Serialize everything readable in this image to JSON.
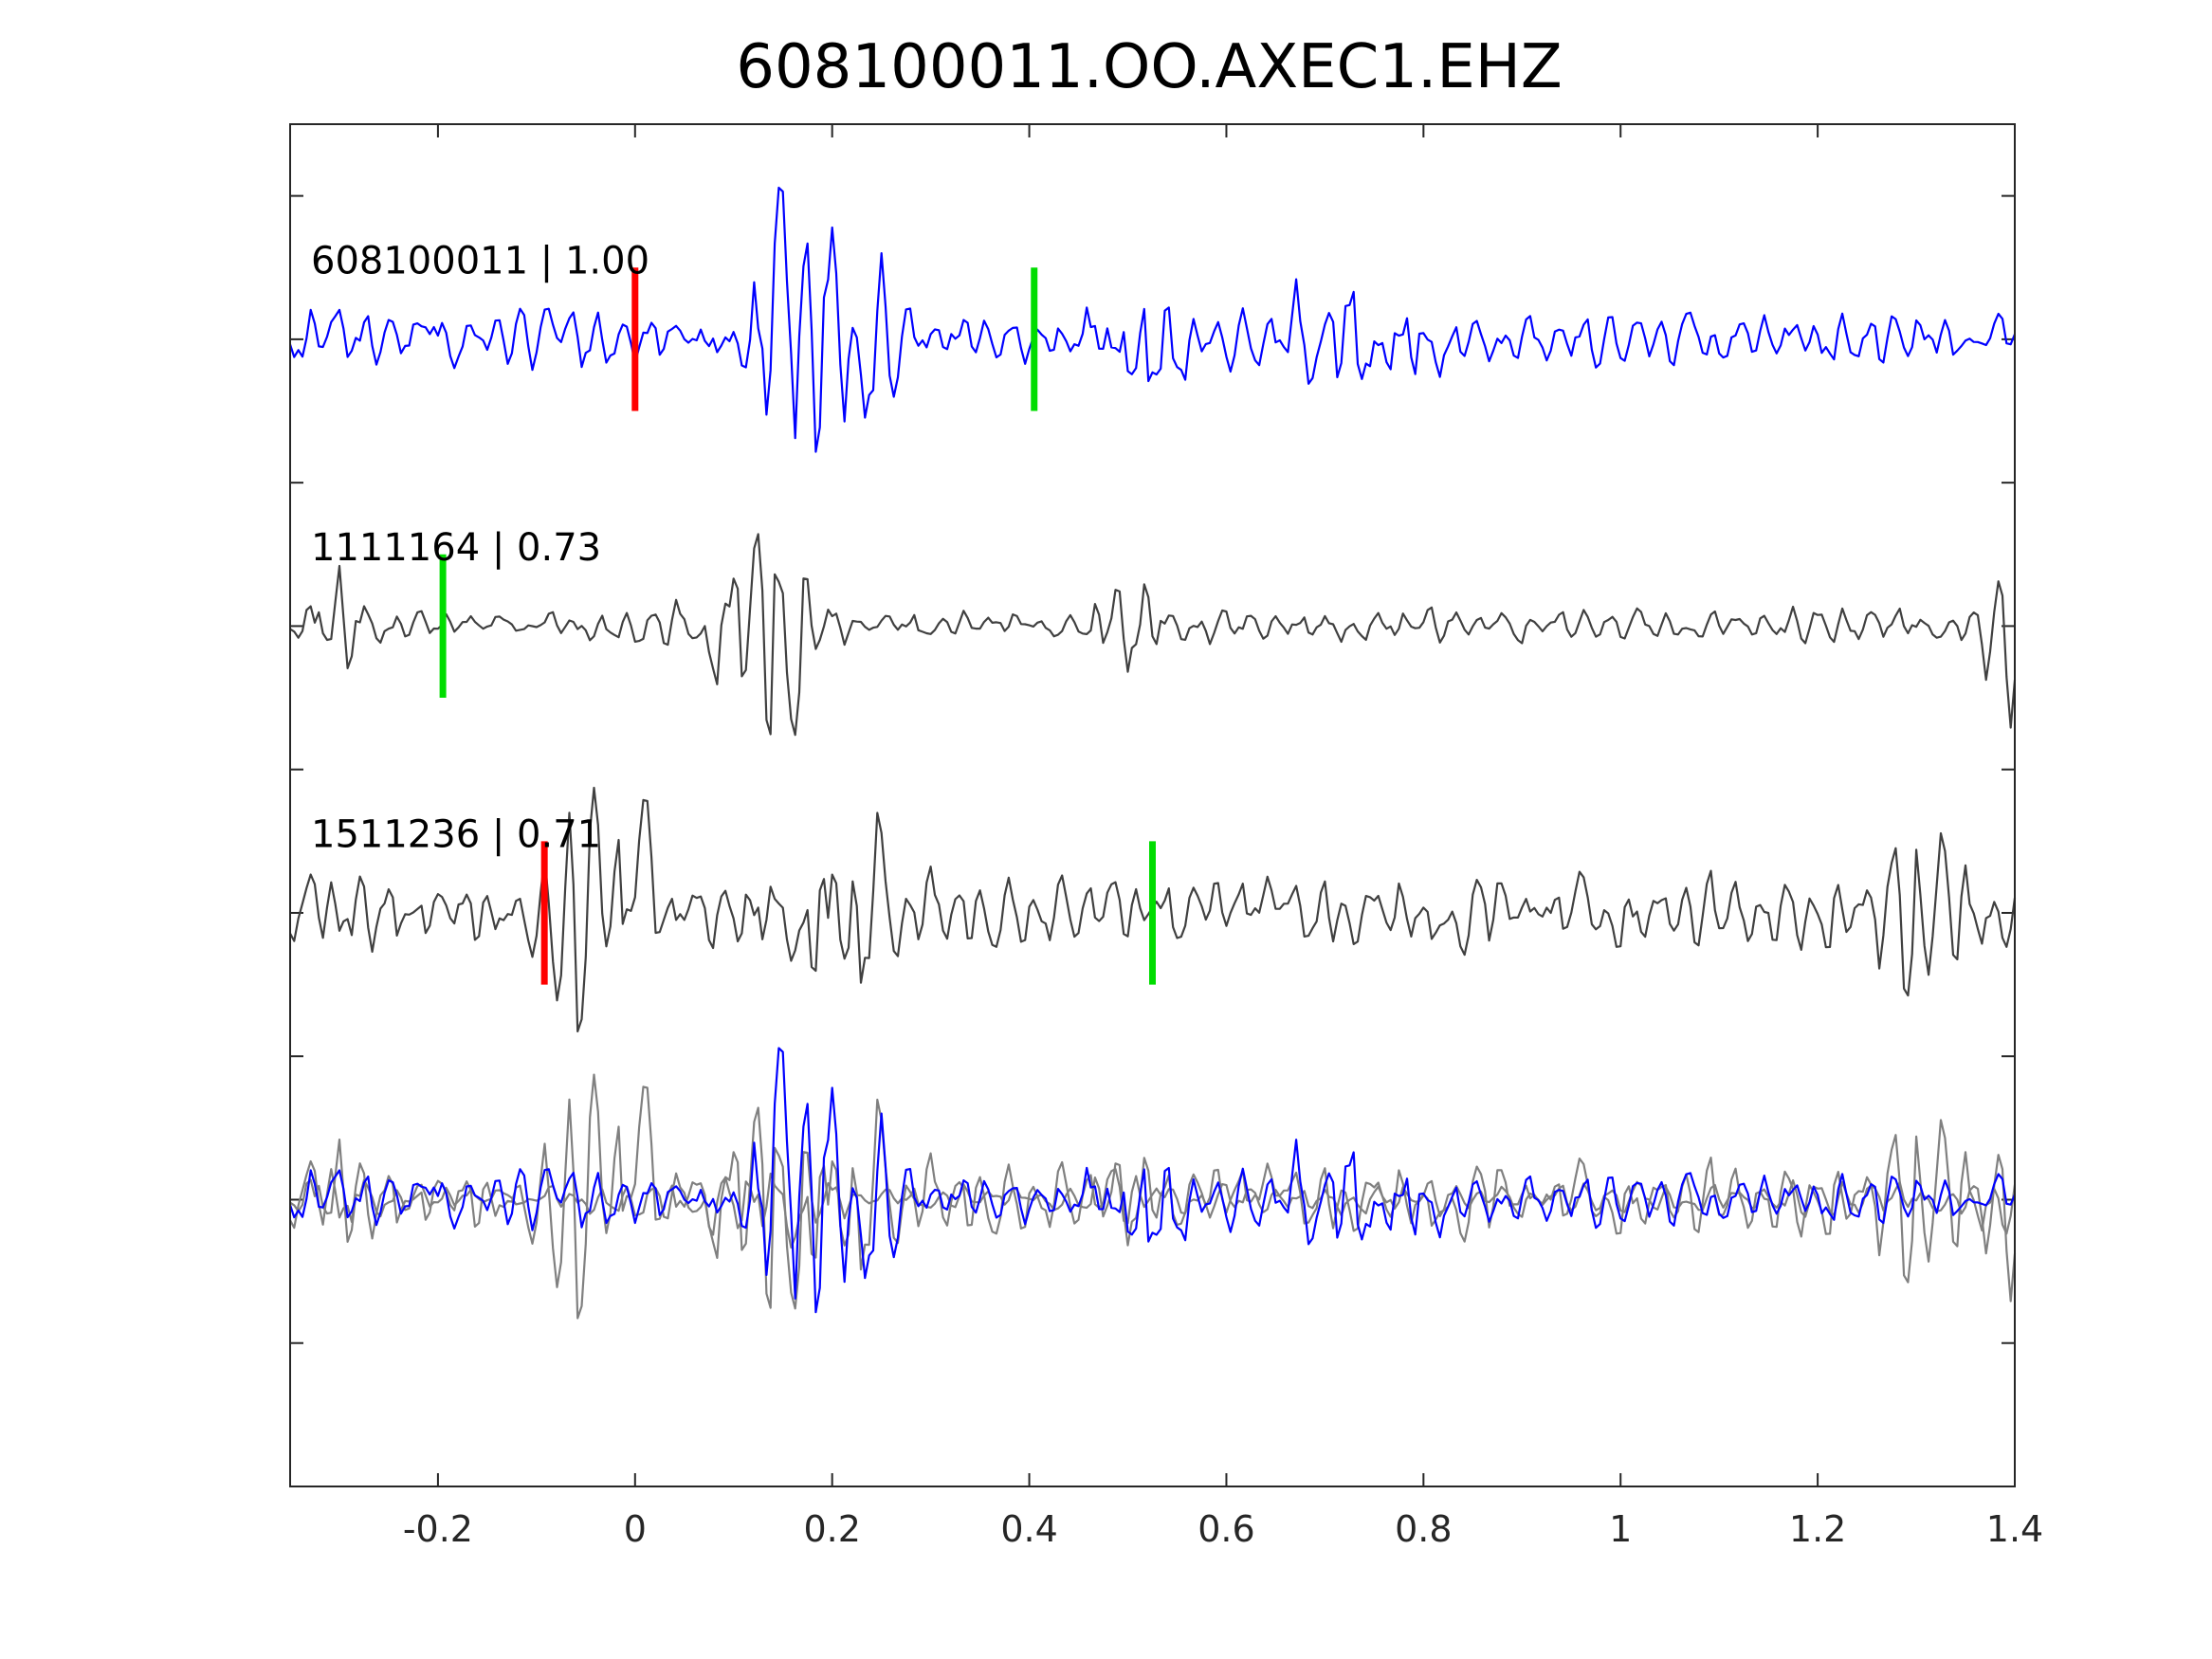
{
  "chart_data": {
    "type": "line",
    "title": "608100011.OO.AXEC1.EHZ",
    "xlabel": "",
    "ylabel": "",
    "xlim": [
      -0.35,
      1.4
    ],
    "xticks": [
      -0.2,
      0,
      0.2,
      0.4,
      0.6,
      0.8,
      1,
      1.2,
      1.4
    ],
    "xtick_labels": [
      "-0.2",
      "0",
      "0.2",
      "0.4",
      "0.6",
      "0.8",
      "1",
      "1.2",
      "1.4"
    ],
    "ylim": [
      -0.5,
      4.25
    ],
    "y_tick_labels_shown": false,
    "grid": false,
    "colors": {
      "master": "#0000ff",
      "trace": "#404040",
      "overlay": "#808080",
      "p_pick": "#ff0000",
      "s_pick": "#00dd00"
    },
    "series": [
      {
        "label": "608100011 | 1.00",
        "offset": 3.5,
        "color": "#0000ff",
        "picks": [
          {
            "phase": "P",
            "t": 0.0
          },
          {
            "phase": "S",
            "t": 0.405
          }
        ],
        "seed": 11,
        "bursts": [
          {
            "t": 0.16,
            "amp": 0.55,
            "width": 0.035
          },
          {
            "t": 0.22,
            "amp": 0.3,
            "width": 0.04
          },
          {
            "t": 0.52,
            "amp": 0.25,
            "width": 0.04
          },
          {
            "t": 0.72,
            "amp": 0.18,
            "width": 0.06
          }
        ],
        "base_amp": 0.1
      },
      {
        "label": "1111164 | 0.73",
        "offset": 2.5,
        "color": "#404040",
        "picks": [
          {
            "phase": "S",
            "t": -0.195
          }
        ],
        "seed": 23,
        "bursts": [
          {
            "t": -0.3,
            "amp": 0.2,
            "width": 0.03
          },
          {
            "t": 0.155,
            "amp": 0.55,
            "width": 0.025
          },
          {
            "t": 0.1,
            "amp": 0.22,
            "width": 0.04
          },
          {
            "t": 0.5,
            "amp": 0.14,
            "width": 0.04
          },
          {
            "t": 1.39,
            "amp": 0.35,
            "width": 0.02
          }
        ],
        "base_amp": 0.06
      },
      {
        "label": "1511236 | 0.71",
        "offset": 1.5,
        "color": "#404040",
        "picks": [
          {
            "phase": "P",
            "t": -0.092
          },
          {
            "phase": "S",
            "t": 0.525
          }
        ],
        "seed": 37,
        "bursts": [
          {
            "t": -0.06,
            "amp": 0.5,
            "width": 0.03
          },
          {
            "t": 0.0,
            "amp": 0.4,
            "width": 0.03
          },
          {
            "t": 0.22,
            "amp": 0.32,
            "width": 0.05
          },
          {
            "t": 1.3,
            "amp": 0.22,
            "width": 0.05
          }
        ],
        "base_amp": 0.13
      }
    ],
    "overlay": {
      "offset": 0.5,
      "note": "all traces superimposed"
    }
  }
}
